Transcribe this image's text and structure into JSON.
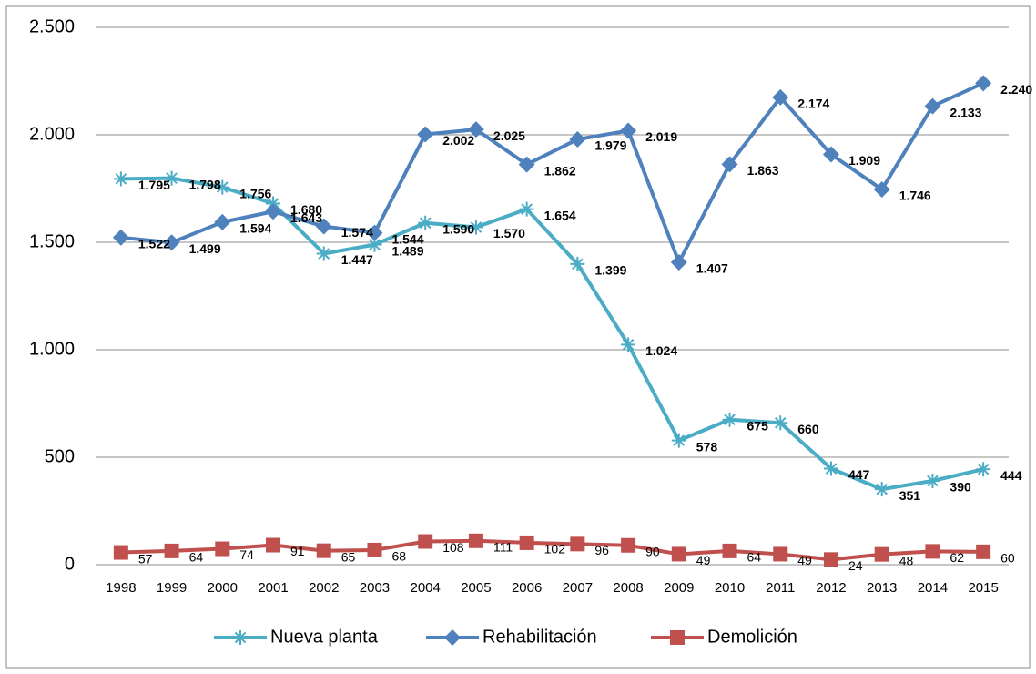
{
  "chart_data": {
    "type": "line",
    "categories": [
      "1998",
      "1999",
      "2000",
      "2001",
      "2002",
      "2003",
      "2004",
      "2005",
      "2006",
      "2007",
      "2008",
      "2009",
      "2010",
      "2011",
      "2012",
      "2013",
      "2014",
      "2015"
    ],
    "series": [
      {
        "name": "Nueva planta",
        "color": "#4bacc6",
        "marker": "star",
        "values": [
          1795,
          1798,
          1756,
          1680,
          1447,
          1489,
          1590,
          1570,
          1654,
          1399,
          1024,
          578,
          675,
          660,
          447,
          351,
          390,
          444
        ],
        "value_labels": [
          "1.795",
          "1.798",
          "1.756",
          "1.680",
          "1.447",
          "1.489",
          "1.590",
          "1.570",
          "1.654",
          "1.399",
          "1.024",
          "578",
          "675",
          "660",
          "447",
          "351",
          "390",
          "444"
        ]
      },
      {
        "name": "Rehabilitación",
        "color": "#4f81bd",
        "marker": "diamond",
        "values": [
          1522,
          1499,
          1594,
          1643,
          1574,
          1544,
          2002,
          2025,
          1862,
          1979,
          2019,
          1407,
          1863,
          2174,
          1909,
          1746,
          2133,
          2240
        ],
        "value_labels": [
          "1.522",
          "1.499",
          "1.594",
          "1.643",
          "1.574",
          "1.544",
          "2.002",
          "2.025",
          "1.862",
          "1.979",
          "2.019",
          "1.407",
          "1.863",
          "2.174",
          "1.909",
          "1.746",
          "2.133",
          "2.240"
        ]
      },
      {
        "name": "Demolición",
        "color": "#c0504d",
        "marker": "square",
        "values": [
          57,
          64,
          74,
          91,
          65,
          68,
          108,
          111,
          102,
          96,
          90,
          49,
          64,
          49,
          24,
          48,
          62,
          60
        ]
      }
    ],
    "ylim": [
      0,
      2500
    ],
    "yticks": [
      0,
      500,
      {
        "value": 1000,
        "label": "1.000"
      },
      {
        "value": 1500,
        "label": "1.500"
      },
      {
        "value": 2000,
        "label": "2.000"
      },
      {
        "value": 2500,
        "label": "2.500"
      }
    ],
    "grid": true,
    "legend": "bottom"
  }
}
